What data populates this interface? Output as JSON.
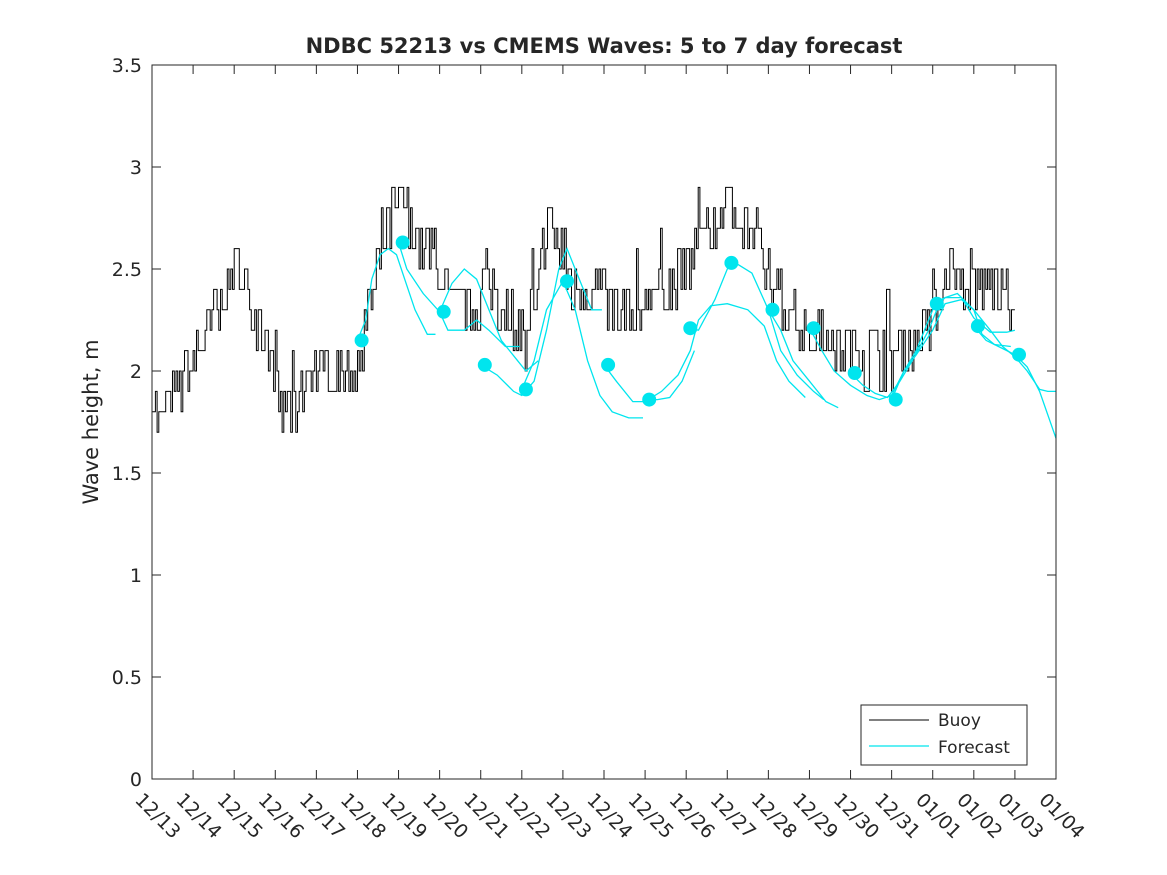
{
  "chart_data": {
    "type": "line",
    "title": "NDBC 52213 vs CMEMS Waves: 5 to 7 day forecast",
    "xlabel": "",
    "ylabel": "Wave height, m",
    "xlim": [
      0,
      22
    ],
    "ylim": [
      0,
      3.5
    ],
    "yticks": [
      0,
      0.5,
      1,
      1.5,
      2,
      2.5,
      3,
      3.5
    ],
    "ytick_labels": [
      "0",
      "0.5",
      "1",
      "1.5",
      "2",
      "2.5",
      "3",
      "3.5"
    ],
    "xtick_labels": [
      "12/13",
      "12/14",
      "12/15",
      "12/16",
      "12/17",
      "12/18",
      "12/19",
      "12/20",
      "12/21",
      "12/22",
      "12/23",
      "12/24",
      "12/25",
      "12/26",
      "12/27",
      "12/28",
      "12/29",
      "12/30",
      "12/31",
      "01/01",
      "01/02",
      "01/03",
      "01/04"
    ],
    "legend": {
      "location": "bottom-right",
      "entries": [
        {
          "name": "Buoy",
          "color": "#000000"
        },
        {
          "name": "Forecast",
          "color": "#00e5ee"
        }
      ]
    },
    "buoy": {
      "name": "Buoy",
      "color": "#000000",
      "keypoints": [
        [
          0.0,
          1.9
        ],
        [
          0.2,
          1.7
        ],
        [
          0.5,
          1.9
        ],
        [
          1.0,
          2.0
        ],
        [
          1.3,
          2.2
        ],
        [
          1.6,
          2.3
        ],
        [
          1.9,
          2.45
        ],
        [
          2.1,
          2.5
        ],
        [
          2.4,
          2.3
        ],
        [
          2.7,
          2.15
        ],
        [
          2.9,
          2.0
        ],
        [
          3.1,
          1.85
        ],
        [
          3.3,
          1.8
        ],
        [
          3.5,
          1.85
        ],
        [
          3.8,
          2.0
        ],
        [
          4.2,
          2.05
        ],
        [
          4.6,
          2.0
        ],
        [
          5.0,
          2.05
        ],
        [
          5.2,
          2.2
        ],
        [
          5.6,
          2.6
        ],
        [
          5.9,
          2.8
        ],
        [
          6.1,
          2.85
        ],
        [
          6.3,
          2.7
        ],
        [
          6.6,
          2.6
        ],
        [
          6.9,
          2.55
        ],
        [
          7.2,
          2.35
        ],
        [
          7.6,
          2.3
        ],
        [
          8.0,
          2.35
        ],
        [
          8.4,
          2.35
        ],
        [
          8.8,
          2.25
        ],
        [
          9.0,
          2.2
        ],
        [
          9.1,
          2.1
        ],
        [
          9.3,
          2.4
        ],
        [
          9.6,
          2.7
        ],
        [
          9.9,
          2.6
        ],
        [
          10.2,
          2.45
        ],
        [
          10.5,
          2.4
        ],
        [
          11.0,
          2.35
        ],
        [
          11.5,
          2.3
        ],
        [
          12.0,
          2.35
        ],
        [
          12.5,
          2.4
        ],
        [
          13.0,
          2.5
        ],
        [
          13.4,
          2.65
        ],
        [
          13.8,
          2.75
        ],
        [
          14.1,
          2.8
        ],
        [
          14.5,
          2.7
        ],
        [
          14.9,
          2.5
        ],
        [
          15.3,
          2.35
        ],
        [
          15.7,
          2.25
        ],
        [
          16.1,
          2.2
        ],
        [
          16.5,
          2.15
        ],
        [
          16.9,
          2.1
        ],
        [
          17.3,
          2.05
        ],
        [
          17.7,
          2.05
        ],
        [
          18.0,
          2.05
        ],
        [
          18.4,
          2.1
        ],
        [
          18.8,
          2.2
        ],
        [
          19.1,
          2.3
        ],
        [
          19.4,
          2.55
        ],
        [
          19.7,
          2.45
        ],
        [
          20.0,
          2.35
        ],
        [
          20.4,
          2.4
        ],
        [
          20.7,
          2.4
        ],
        [
          21.0,
          2.4
        ]
      ]
    },
    "forecast_segments": [
      {
        "name": "Forecast",
        "points": [
          [
            5.0,
            2.15
          ],
          [
            5.2,
            2.25
          ],
          [
            5.35,
            2.45
          ],
          [
            5.55,
            2.57
          ],
          [
            5.75,
            2.6
          ],
          [
            5.95,
            2.57
          ],
          [
            6.15,
            2.45
          ],
          [
            6.4,
            2.3
          ],
          [
            6.7,
            2.18
          ],
          [
            6.9,
            2.18
          ]
        ]
      },
      {
        "name": "Forecast",
        "points": [
          [
            6.0,
            2.63
          ],
          [
            6.2,
            2.5
          ],
          [
            6.6,
            2.38
          ],
          [
            7.0,
            2.29
          ],
          [
            7.2,
            2.2
          ],
          [
            7.6,
            2.2
          ],
          [
            7.9,
            2.25
          ],
          [
            8.2,
            2.2
          ],
          [
            8.6,
            2.12
          ],
          [
            8.95,
            2.12
          ]
        ]
      },
      {
        "name": "Forecast",
        "points": [
          [
            7.0,
            2.29
          ],
          [
            7.3,
            2.43
          ],
          [
            7.6,
            2.5
          ],
          [
            7.9,
            2.45
          ],
          [
            8.2,
            2.3
          ],
          [
            8.5,
            2.15
          ],
          [
            8.9,
            2.05
          ],
          [
            9.1,
            2.0
          ],
          [
            9.4,
            2.05
          ]
        ]
      },
      {
        "name": "Forecast",
        "points": [
          [
            8.0,
            2.03
          ],
          [
            8.4,
            1.98
          ],
          [
            8.8,
            1.9
          ],
          [
            9.0,
            1.88
          ],
          [
            9.3,
            1.95
          ],
          [
            9.6,
            2.2
          ],
          [
            9.9,
            2.5
          ],
          [
            10.1,
            2.6
          ],
          [
            10.4,
            2.45
          ],
          [
            10.7,
            2.3
          ],
          [
            10.95,
            2.3
          ]
        ]
      },
      {
        "name": "Forecast",
        "points": [
          [
            9.0,
            1.91
          ],
          [
            9.3,
            2.05
          ],
          [
            9.6,
            2.3
          ],
          [
            10.0,
            2.44
          ],
          [
            10.3,
            2.3
          ],
          [
            10.6,
            2.05
          ],
          [
            10.9,
            1.88
          ],
          [
            11.2,
            1.8
          ],
          [
            11.6,
            1.77
          ],
          [
            11.95,
            1.77
          ]
        ]
      },
      {
        "name": "Forecast",
        "points": [
          [
            11.0,
            2.03
          ],
          [
            11.3,
            1.95
          ],
          [
            11.7,
            1.85
          ],
          [
            12.0,
            1.85
          ],
          [
            12.4,
            1.9
          ],
          [
            12.8,
            1.98
          ],
          [
            13.1,
            2.1
          ],
          [
            13.3,
            2.25
          ],
          [
            13.6,
            2.32
          ],
          [
            14.0,
            2.33
          ],
          [
            14.5,
            2.3
          ],
          [
            14.9,
            2.22
          ],
          [
            15.2,
            2.05
          ],
          [
            15.5,
            1.95
          ],
          [
            15.9,
            1.87
          ]
        ]
      },
      {
        "name": "Forecast",
        "points": [
          [
            12.0,
            1.86
          ],
          [
            12.3,
            1.86
          ],
          [
            12.6,
            1.87
          ],
          [
            12.9,
            1.95
          ],
          [
            13.2,
            2.1
          ]
        ]
      },
      {
        "name": "Forecast",
        "points": [
          [
            13.0,
            2.21
          ],
          [
            13.3,
            2.2
          ],
          [
            13.7,
            2.35
          ],
          [
            14.0,
            2.5
          ],
          [
            14.2,
            2.53
          ],
          [
            14.6,
            2.48
          ],
          [
            15.0,
            2.3
          ],
          [
            15.3,
            2.1
          ],
          [
            15.7,
            1.98
          ],
          [
            16.1,
            1.9
          ],
          [
            16.35,
            1.86
          ]
        ]
      },
      {
        "name": "Forecast",
        "points": [
          [
            15.0,
            2.3
          ],
          [
            15.3,
            2.2
          ],
          [
            15.6,
            2.05
          ],
          [
            16.0,
            1.95
          ],
          [
            16.4,
            1.85
          ],
          [
            16.7,
            1.82
          ]
        ]
      },
      {
        "name": "Forecast",
        "points": [
          [
            16.0,
            2.21
          ],
          [
            16.3,
            2.1
          ],
          [
            16.6,
            2.0
          ],
          [
            17.0,
            1.93
          ],
          [
            17.4,
            1.88
          ],
          [
            17.7,
            1.86
          ],
          [
            18.0,
            1.88
          ],
          [
            18.3,
            2.0
          ],
          [
            18.6,
            2.08
          ],
          [
            19.0,
            2.2
          ],
          [
            19.3,
            2.33
          ],
          [
            19.7,
            2.35
          ],
          [
            20.0,
            2.3
          ],
          [
            20.2,
            2.18
          ],
          [
            20.5,
            2.13
          ],
          [
            20.9,
            2.12
          ]
        ]
      },
      {
        "name": "Forecast",
        "points": [
          [
            17.0,
            1.99
          ],
          [
            17.3,
            1.93
          ],
          [
            17.6,
            1.89
          ],
          [
            17.9,
            1.87
          ],
          [
            18.2,
            1.95
          ],
          [
            18.5,
            2.05
          ],
          [
            18.9,
            2.2
          ],
          [
            19.2,
            2.35
          ]
        ]
      },
      {
        "name": "Forecast",
        "points": [
          [
            18.0,
            1.86
          ],
          [
            18.3,
            2.0
          ],
          [
            18.6,
            2.1
          ],
          [
            19.0,
            2.3
          ],
          [
            19.3,
            2.36
          ],
          [
            19.6,
            2.38
          ],
          [
            20.0,
            2.3
          ],
          [
            20.4,
            2.2
          ],
          [
            20.7,
            2.12
          ],
          [
            21.0,
            2.07
          ],
          [
            21.3,
            2.0
          ],
          [
            21.6,
            1.91
          ],
          [
            21.8,
            1.9
          ],
          [
            22.0,
            1.9
          ]
        ]
      },
      {
        "name": "Forecast",
        "points": [
          [
            20.0,
            2.22
          ],
          [
            20.3,
            2.15
          ],
          [
            20.6,
            2.12
          ],
          [
            21.0,
            2.08
          ],
          [
            21.3,
            2.02
          ],
          [
            21.6,
            1.9
          ],
          [
            22.0,
            1.67
          ]
        ]
      },
      {
        "name": "Forecast",
        "points": [
          [
            19.0,
            2.33
          ],
          [
            19.3,
            2.36
          ],
          [
            19.7,
            2.36
          ],
          [
            20.0,
            2.26
          ],
          [
            20.4,
            2.19
          ],
          [
            20.8,
            2.19
          ],
          [
            21.0,
            2.2
          ]
        ]
      }
    ],
    "forecast_markers": [
      [
        5.1,
        2.15
      ],
      [
        6.1,
        2.63
      ],
      [
        7.1,
        2.29
      ],
      [
        8.1,
        2.03
      ],
      [
        9.1,
        1.91
      ],
      [
        10.1,
        2.44
      ],
      [
        11.1,
        2.03
      ],
      [
        12.1,
        1.86
      ],
      [
        13.1,
        2.21
      ],
      [
        14.1,
        2.53
      ],
      [
        15.1,
        2.3
      ],
      [
        16.1,
        2.21
      ],
      [
        17.1,
        1.99
      ],
      [
        18.1,
        1.86
      ],
      [
        19.1,
        2.33
      ],
      [
        20.1,
        2.22
      ],
      [
        21.1,
        2.08
      ]
    ],
    "noise_seed": 7,
    "noise_step_m": 0.1
  }
}
